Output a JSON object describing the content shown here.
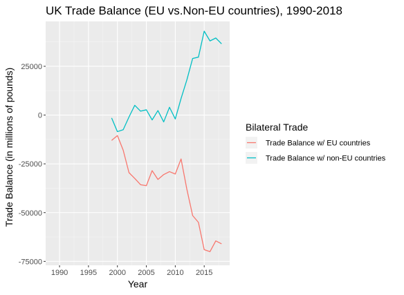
{
  "chart_data": {
    "type": "line",
    "title": "UK Trade Balance (EU vs.Non-EU countries), 1990-2018",
    "xlabel": "Year",
    "ylabel": "Trade Balance (in millions of pounds)",
    "xlim": [
      1987.6,
      2019.4
    ],
    "ylim": [
      -77000,
      48000
    ],
    "x_ticks": [
      1990,
      1995,
      2000,
      2005,
      2010,
      2015
    ],
    "y_ticks": [
      -75000,
      -50000,
      -25000,
      0,
      25000
    ],
    "grid": true,
    "legend": {
      "title": "Bilateral Trade",
      "position": "right"
    },
    "series": [
      {
        "name": "Trade Balance w/ EU countries",
        "color": "#F8766D",
        "x": [
          1999,
          2000,
          2001,
          2002,
          2003,
          2004,
          2005,
          2006,
          2007,
          2008,
          2009,
          2010,
          2011,
          2012,
          2013,
          2014,
          2015,
          2016,
          2017,
          2018
        ],
        "y": [
          -13000,
          -10500,
          -18000,
          -29500,
          -32500,
          -35700,
          -36200,
          -28500,
          -33000,
          -30500,
          -29000,
          -30200,
          -22500,
          -38000,
          -51500,
          -55000,
          -69000,
          -70000,
          -64500,
          -66000
        ]
      },
      {
        "name": "Trade Balance w/ non-EU countries",
        "color": "#00BFC4",
        "x": [
          1999,
          2000,
          2001,
          2002,
          2003,
          2004,
          2005,
          2006,
          2007,
          2008,
          2009,
          2010,
          2011,
          2012,
          2013,
          2014,
          2015,
          2016,
          2017,
          2018
        ],
        "y": [
          -1500,
          -8500,
          -7500,
          -1000,
          5000,
          2000,
          2700,
          -2500,
          2300,
          -3500,
          4000,
          -2000,
          8500,
          18000,
          29000,
          29700,
          43000,
          38000,
          39500,
          36500
        ]
      }
    ]
  }
}
